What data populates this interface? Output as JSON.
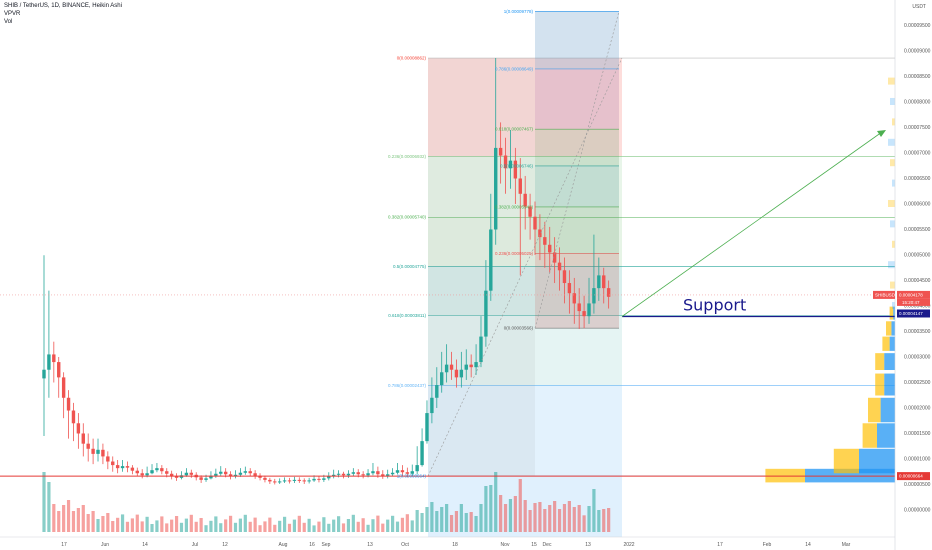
{
  "header": {
    "symbol_line": "SHIB / TetherUS, 1D, BINANCE, Heikin Ashi",
    "indicator_1": "VPVR",
    "indicator_2": "Vol"
  },
  "axis": {
    "unit_label": "USDT"
  },
  "colors": {
    "up": "#26a69a",
    "down": "#ef5350",
    "support_line": "#1a1a8c",
    "horizontal_red": "#e53935",
    "trend_arrow": "#4caf50"
  },
  "annotations": {
    "support": "Support",
    "pair_tag": "SHIBUSDT",
    "price_tag": "0.00004178",
    "timer_tag": "15:20:47",
    "support_tag": "0.00004147",
    "low_tag": "0.00000664"
  },
  "chart_data": {
    "type": "candlestick",
    "y_ticks": [
      "0.00009500",
      "0.00009000",
      "0.00008500",
      "0.00008000",
      "0.00007500",
      "0.00007000",
      "0.00006500",
      "0.00006000",
      "0.00005500",
      "0.00005000",
      "0.00004500",
      "0.00004000",
      "0.00003500",
      "0.00003000",
      "0.00002500",
      "0.00002000",
      "0.00001500",
      "0.00001000",
      "0.00000500",
      "0.00000000"
    ],
    "y_tick_values": [
      9.5e-05,
      9e-05,
      8.5e-05,
      8e-05,
      7.5e-05,
      7e-05,
      6.5e-05,
      6e-05,
      5.5e-05,
      5e-05,
      4.5e-05,
      4e-05,
      3.5e-05,
      3e-05,
      2.5e-05,
      2e-05,
      1.5e-05,
      1e-05,
      5e-06,
      0
    ],
    "x_ticks": [
      "17",
      "Jun",
      "14",
      "Jul",
      "12",
      "Aug",
      "16",
      "Sep",
      "13",
      "Oct",
      "18",
      "Nov",
      "15",
      "Dec",
      "13",
      "2022",
      "17",
      "Feb",
      "14",
      "Mar"
    ],
    "fib_left": [
      {
        "label": "0(0.00008862)",
        "value": 8.862e-05
      },
      {
        "label": "0.236(0.00006932)",
        "value": 6.932e-05
      },
      {
        "label": "0.382(0.00005740)",
        "value": 5.74e-05
      },
      {
        "label": "0.5(0.00004775)",
        "value": 4.775e-05
      },
      {
        "label": "0.618(0.00003811)",
        "value": 3.811e-05
      },
      {
        "label": "0.786(0.00002437)",
        "value": 2.437e-05
      },
      {
        "label": "1(0.00000664)",
        "value": 6.64e-06
      }
    ],
    "fib_right": [
      {
        "label": "1(0.00009778)",
        "value": 9.778e-05
      },
      {
        "label": "0.786(0.00008649)",
        "value": 8.649e-05
      },
      {
        "label": "0.618(0.00007467)",
        "value": 7.467e-05
      },
      {
        "label": "0.5(0.00006746)",
        "value": 6.746e-05
      },
      {
        "label": "0.382(0.00005942)",
        "value": 5.942e-05
      },
      {
        "label": "0.236(0.00005025)",
        "value": 5.025e-05
      },
      {
        "label": "0(0.00003566)",
        "value": 3.566e-05
      }
    ],
    "candles": [
      {
        "o": 2.58e-05,
        "c": 2.75e-05,
        "h": 4.994e-05,
        "l": 1.45e-05
      },
      {
        "o": 2.75e-05,
        "c": 3.05e-05,
        "h": 4.3e-05,
        "l": 2.2e-05
      },
      {
        "o": 3.05e-05,
        "c": 2.9e-05,
        "h": 3.3e-05,
        "l": 2.5e-05
      },
      {
        "o": 2.9e-05,
        "c": 2.6e-05,
        "h": 3e-05,
        "l": 2.2e-05
      },
      {
        "o": 2.6e-05,
        "c": 2.2e-05,
        "h": 2.7e-05,
        "l": 1.8e-05
      },
      {
        "o": 2.2e-05,
        "c": 1.95e-05,
        "h": 2.35e-05,
        "l": 1.4e-05
      },
      {
        "o": 1.95e-05,
        "c": 1.7e-05,
        "h": 2.1e-05,
        "l": 1.35e-05
      },
      {
        "o": 1.7e-05,
        "c": 1.5e-05,
        "h": 1.9e-05,
        "l": 1.2e-05
      },
      {
        "o": 1.5e-05,
        "c": 1.3e-05,
        "h": 1.7e-05,
        "l": 1.05e-05
      },
      {
        "o": 1.3e-05,
        "c": 1.2e-05,
        "h": 1.5e-05,
        "l": 9.5e-06
      },
      {
        "o": 1.2e-05,
        "c": 1.1e-05,
        "h": 1.4e-05,
        "l": 9e-06
      },
      {
        "o": 1.1e-05,
        "c": 1.18e-05,
        "h": 1.4e-05,
        "l": 9.5e-06
      },
      {
        "o": 1.18e-05,
        "c": 1.05e-05,
        "h": 1.3e-05,
        "l": 9e-06
      },
      {
        "o": 1.05e-05,
        "c": 9.5e-06,
        "h": 1.15e-05,
        "l": 8e-06
      },
      {
        "o": 9.5e-06,
        "c": 8.8e-06,
        "h": 1.05e-05,
        "l": 7.5e-06
      },
      {
        "o": 8.8e-06,
        "c": 8.2e-06,
        "h": 9.8e-06,
        "l": 7.2e-06
      },
      {
        "o": 8.2e-06,
        "c": 8.6e-06,
        "h": 9.8e-06,
        "l": 7.5e-06
      },
      {
        "o": 8.6e-06,
        "c": 8.3e-06,
        "h": 9.5e-06,
        "l": 7.4e-06
      },
      {
        "o": 8.3e-06,
        "c": 7.7e-06,
        "h": 8.8e-06,
        "l": 7e-06
      },
      {
        "o": 7.7e-06,
        "c": 7.2e-06,
        "h": 8.3e-06,
        "l": 6.6e-06
      },
      {
        "o": 7.2e-06,
        "c": 6.8e-06,
        "h": 8e-06,
        "l": 6.2e-06
      },
      {
        "o": 6.8e-06,
        "c": 7.2e-06,
        "h": 8.5e-06,
        "l": 6.4e-06
      },
      {
        "o": 7.2e-06,
        "c": 7.8e-06,
        "h": 9e-06,
        "l": 7e-06
      },
      {
        "o": 7.8e-06,
        "c": 8.2e-06,
        "h": 9.2e-06,
        "l": 7.4e-06
      },
      {
        "o": 8.2e-06,
        "c": 7.6e-06,
        "h": 8.8e-06,
        "l": 7e-06
      },
      {
        "o": 7.6e-06,
        "c": 7.1e-06,
        "h": 8.2e-06,
        "l": 6.4e-06
      },
      {
        "o": 7.1e-06,
        "c": 6.6e-06,
        "h": 7.7e-06,
        "l": 6e-06
      },
      {
        "o": 6.6e-06,
        "c": 6.3e-06,
        "h": 7.2e-06,
        "l": 5.7e-06
      },
      {
        "o": 6.3e-06,
        "c": 6.8e-06,
        "h": 7.6e-06,
        "l": 6e-06
      },
      {
        "o": 6.8e-06,
        "c": 7.3e-06,
        "h": 8.2e-06,
        "l": 6.5e-06
      },
      {
        "o": 7.3e-06,
        "c": 6.9e-06,
        "h": 7.9e-06,
        "l": 6.3e-06
      },
      {
        "o": 6.9e-06,
        "c": 6.4e-06,
        "h": 7.4e-06,
        "l": 5.8e-06
      },
      {
        "o": 6.4e-06,
        "c": 5.9e-06,
        "h": 6.8e-06,
        "l": 5.3e-06
      },
      {
        "o": 5.9e-06,
        "c": 6.2e-06,
        "h": 6.9e-06,
        "l": 5.5e-06
      },
      {
        "o": 6.2e-06,
        "c": 6.7e-06,
        "h": 7.6e-06,
        "l": 6e-06
      },
      {
        "o": 6.7e-06,
        "c": 7.1e-06,
        "h": 8.1e-06,
        "l": 6.3e-06
      },
      {
        "o": 7.1e-06,
        "c": 7.5e-06,
        "h": 8.6e-06,
        "l": 6.7e-06
      },
      {
        "o": 7.5e-06,
        "c": 7e-06,
        "h": 8.2e-06,
        "l": 6.4e-06
      },
      {
        "o": 7e-06,
        "c": 6.6e-06,
        "h": 7.6e-06,
        "l": 6e-06
      },
      {
        "o": 6.6e-06,
        "c": 6.9e-06,
        "h": 7.8e-06,
        "l": 6.2e-06
      },
      {
        "o": 6.9e-06,
        "c": 7.3e-06,
        "h": 8.2e-06,
        "l": 6.5e-06
      },
      {
        "o": 7.3e-06,
        "c": 7.6e-06,
        "h": 8.5e-06,
        "l": 6.9e-06
      },
      {
        "o": 7.6e-06,
        "c": 7.2e-06,
        "h": 8.2e-06,
        "l": 6.6e-06
      },
      {
        "o": 7.2e-06,
        "c": 6.7e-06,
        "h": 7.8e-06,
        "l": 6.1e-06
      },
      {
        "o": 6.7e-06,
        "c": 6.3e-06,
        "h": 7.2e-06,
        "l": 5.8e-06
      },
      {
        "o": 6.3e-06,
        "c": 5.9e-06,
        "h": 6.7e-06,
        "l": 5.4e-06
      },
      {
        "o": 5.9e-06,
        "c": 5.6e-06,
        "h": 6.3e-06,
        "l": 5.1e-06
      },
      {
        "o": 5.6e-06,
        "c": 5.4e-06,
        "h": 6.1e-06,
        "l": 5e-06
      },
      {
        "o": 5.4e-06,
        "c": 5.6e-06,
        "h": 6.2e-06,
        "l": 5.1e-06
      },
      {
        "o": 5.6e-06,
        "c": 5.8e-06,
        "h": 6.4e-06,
        "l": 5.3e-06
      },
      {
        "o": 5.8e-06,
        "c": 5.7e-06,
        "h": 6.3e-06,
        "l": 5.2e-06
      },
      {
        "o": 5.7e-06,
        "c": 5.9e-06,
        "h": 6.5e-06,
        "l": 5.3e-06
      },
      {
        "o": 5.9e-06,
        "c": 5.8e-06,
        "h": 6.4e-06,
        "l": 5.3e-06
      },
      {
        "o": 5.8e-06,
        "c": 5.6e-06,
        "h": 6.2e-06,
        "l": 5.1e-06
      },
      {
        "o": 5.6e-06,
        "c": 5.8e-06,
        "h": 6.3e-06,
        "l": 5.2e-06
      },
      {
        "o": 5.8e-06,
        "c": 6.1e-06,
        "h": 6.8e-06,
        "l": 5.5e-06
      },
      {
        "o": 6.1e-06,
        "c": 5.9e-06,
        "h": 6.6e-06,
        "l": 5.4e-06
      },
      {
        "o": 5.9e-06,
        "c": 6.2e-06,
        "h": 6.9e-06,
        "l": 5.5e-06
      },
      {
        "o": 6.2e-06,
        "c": 6.6e-06,
        "h": 7.4e-06,
        "l": 5.8e-06
      },
      {
        "o": 6.6e-06,
        "c": 6.9e-06,
        "h": 7.9e-06,
        "l": 6.2e-06
      },
      {
        "o": 6.9e-06,
        "c": 7.1e-06,
        "h": 7.8e-06,
        "l": 6.4e-06
      },
      {
        "o": 7.1e-06,
        "c": 6.8e-06,
        "h": 7.5e-06,
        "l": 6.2e-06
      },
      {
        "o": 6.8e-06,
        "c": 7.1e-06,
        "h": 7.8e-06,
        "l": 6.3e-06
      },
      {
        "o": 7.1e-06,
        "c": 7.4e-06,
        "h": 8.2e-06,
        "l": 6.6e-06
      },
      {
        "o": 7.4e-06,
        "c": 7e-06,
        "h": 8e-06,
        "l": 6.4e-06
      },
      {
        "o": 7e-06,
        "c": 6.8e-06,
        "h": 7.6e-06,
        "l": 6.2e-06
      },
      {
        "o": 6.8e-06,
        "c": 7.2e-06,
        "h": 8e-06,
        "l": 6.4e-06
      },
      {
        "o": 7.2e-06,
        "c": 7.6e-06,
        "h": 9.2e-06,
        "l": 6.8e-06
      },
      {
        "o": 7.6e-06,
        "c": 7e-06,
        "h": 8.5e-06,
        "l": 6.3e-06
      },
      {
        "o": 7e-06,
        "c": 6.7e-06,
        "h": 7.8e-06,
        "l": 6.1e-06
      },
      {
        "o": 6.7e-06,
        "c": 7e-06,
        "h": 7.9e-06,
        "l": 6.2e-06
      },
      {
        "o": 7e-06,
        "c": 7.3e-06,
        "h": 8.2e-06,
        "l": 6.6e-06
      },
      {
        "o": 7.3e-06,
        "c": 7.8e-06,
        "h": 9.2e-06,
        "l": 7e-06
      },
      {
        "o": 7.8e-06,
        "c": 7.4e-06,
        "h": 8.8e-06,
        "l": 6.7e-06
      },
      {
        "o": 7.4e-06,
        "c": 7.1e-06,
        "h": 8.3e-06,
        "l": 6.4e-06
      },
      {
        "o": 7.1e-06,
        "c": 7.6e-06,
        "h": 8.9e-06,
        "l": 6.6e-06
      },
      {
        "o": 7.6e-06,
        "c": 8.8e-06,
        "h": 1.25e-05,
        "l": 7e-06
      },
      {
        "o": 8.8e-06,
        "c": 1.35e-05,
        "h": 1.6e-05,
        "l": 8.5e-06
      },
      {
        "o": 1.35e-05,
        "c": 1.9e-05,
        "h": 2.15e-05,
        "l": 1.3e-05
      },
      {
        "o": 1.9e-05,
        "c": 2.2e-05,
        "h": 2.6e-05,
        "l": 1.7e-05
      },
      {
        "o": 2.2e-05,
        "c": 2.45e-05,
        "h": 2.8e-05,
        "l": 2e-05
      },
      {
        "o": 2.45e-05,
        "c": 2.7e-05,
        "h": 3.1e-05,
        "l": 2.3e-05
      },
      {
        "o": 2.7e-05,
        "c": 2.85e-05,
        "h": 3.25e-05,
        "l": 2.5e-05
      },
      {
        "o": 2.85e-05,
        "c": 2.75e-05,
        "h": 3.1e-05,
        "l": 2.55e-05
      },
      {
        "o": 2.75e-05,
        "c": 2.6e-05,
        "h": 2.95e-05,
        "l": 2.4e-05
      },
      {
        "o": 2.6e-05,
        "c": 2.75e-05,
        "h": 3.1e-05,
        "l": 2.4e-05
      },
      {
        "o": 2.75e-05,
        "c": 2.85e-05,
        "h": 3.15e-05,
        "l": 2.55e-05
      },
      {
        "o": 2.85e-05,
        "c": 2.8e-05,
        "h": 3.05e-05,
        "l": 2.6e-05
      },
      {
        "o": 2.8e-05,
        "c": 2.9e-05,
        "h": 3.25e-05,
        "l": 2.65e-05
      },
      {
        "o": 2.9e-05,
        "c": 3.4e-05,
        "h": 3.8e-05,
        "l": 2.8e-05
      },
      {
        "o": 3.4e-05,
        "c": 4.3e-05,
        "h": 4.9e-05,
        "l": 3.2e-05
      },
      {
        "o": 4.3e-05,
        "c": 5.5e-05,
        "h": 6.2e-05,
        "l": 4.1e-05
      },
      {
        "o": 5.5e-05,
        "c": 7.1e-05,
        "h": 8.862e-05,
        "l": 5.2e-05
      },
      {
        "o": 7.1e-05,
        "c": 6.95e-05,
        "h": 7.6e-05,
        "l": 6.4e-05
      },
      {
        "o": 6.95e-05,
        "c": 6.7e-05,
        "h": 7.3e-05,
        "l": 6.2e-05
      },
      {
        "o": 6.7e-05,
        "c": 6.85e-05,
        "h": 7.45e-05,
        "l": 6.3e-05
      },
      {
        "o": 6.85e-05,
        "c": 6.5e-05,
        "h": 7.1e-05,
        "l": 6e-05
      },
      {
        "o": 6.5e-05,
        "c": 6.2e-05,
        "h": 6.9e-05,
        "l": 4.6e-05
      },
      {
        "o": 6.2e-05,
        "c": 5.95e-05,
        "h": 6.55e-05,
        "l": 5.5e-05
      },
      {
        "o": 5.95e-05,
        "c": 5.75e-05,
        "h": 6.2e-05,
        "l": 5.3e-05
      },
      {
        "o": 5.75e-05,
        "c": 5.5e-05,
        "h": 6.05e-05,
        "l": 5e-05
      },
      {
        "o": 5.5e-05,
        "c": 5.35e-05,
        "h": 5.8e-05,
        "l": 4.9e-05
      },
      {
        "o": 5.35e-05,
        "c": 5.2e-05,
        "h": 5.65e-05,
        "l": 4.75e-05
      },
      {
        "o": 5.2e-05,
        "c": 5.05e-05,
        "h": 5.55e-05,
        "l": 4.65e-05
      },
      {
        "o": 5.05e-05,
        "c": 4.85e-05,
        "h": 5.35e-05,
        "l": 4.45e-05
      },
      {
        "o": 4.85e-05,
        "c": 4.7e-05,
        "h": 5.15e-05,
        "l": 4.3e-05
      },
      {
        "o": 4.7e-05,
        "c": 4.45e-05,
        "h": 4.95e-05,
        "l": 4.05e-05
      },
      {
        "o": 4.45e-05,
        "c": 4.25e-05,
        "h": 4.7e-05,
        "l": 3.85e-05
      },
      {
        "o": 4.25e-05,
        "c": 4.05e-05,
        "h": 4.55e-05,
        "l": 3.65e-05
      },
      {
        "o": 4.05e-05,
        "c": 3.9e-05,
        "h": 4.35e-05,
        "l": 3.55e-05
      },
      {
        "o": 3.9e-05,
        "c": 3.8e-05,
        "h": 4.2e-05,
        "l": 3.566e-05
      },
      {
        "o": 3.8e-05,
        "c": 4.05e-05,
        "h": 4.55e-05,
        "l": 3.65e-05
      },
      {
        "o": 4.05e-05,
        "c": 4.35e-05,
        "h": 5.4e-05,
        "l": 3.85e-05
      },
      {
        "o": 4.35e-05,
        "c": 4.6e-05,
        "h": 4.95e-05,
        "l": 4.1e-05
      },
      {
        "o": 4.6e-05,
        "c": 4.35e-05,
        "h": 4.75e-05,
        "l": 4.05e-05
      },
      {
        "o": 4.35e-05,
        "c": 4.18e-05,
        "h": 4.5e-05,
        "l": 3.95e-05
      }
    ],
    "volume_profile": [
      {
        "price": 6.64e-06,
        "up": 0.22,
        "down": 0.5
      },
      {
        "price": 9.5e-06,
        "up": 0.14,
        "down": 0.2
      },
      {
        "price": 1.45e-05,
        "up": 0.08,
        "down": 0.1
      },
      {
        "price": 1.95e-05,
        "up": 0.07,
        "down": 0.08
      },
      {
        "price": 2.45e-05,
        "up": 0.05,
        "down": 0.06
      },
      {
        "price": 2.9e-05,
        "up": 0.05,
        "down": 0.06
      },
      {
        "price": 3.25e-05,
        "up": 0.04,
        "down": 0.03
      },
      {
        "price": 3.55e-05,
        "up": 0.03,
        "down": 0.02
      },
      {
        "price": 3.85e-05,
        "up": 0.02,
        "down": 0.01
      }
    ]
  }
}
